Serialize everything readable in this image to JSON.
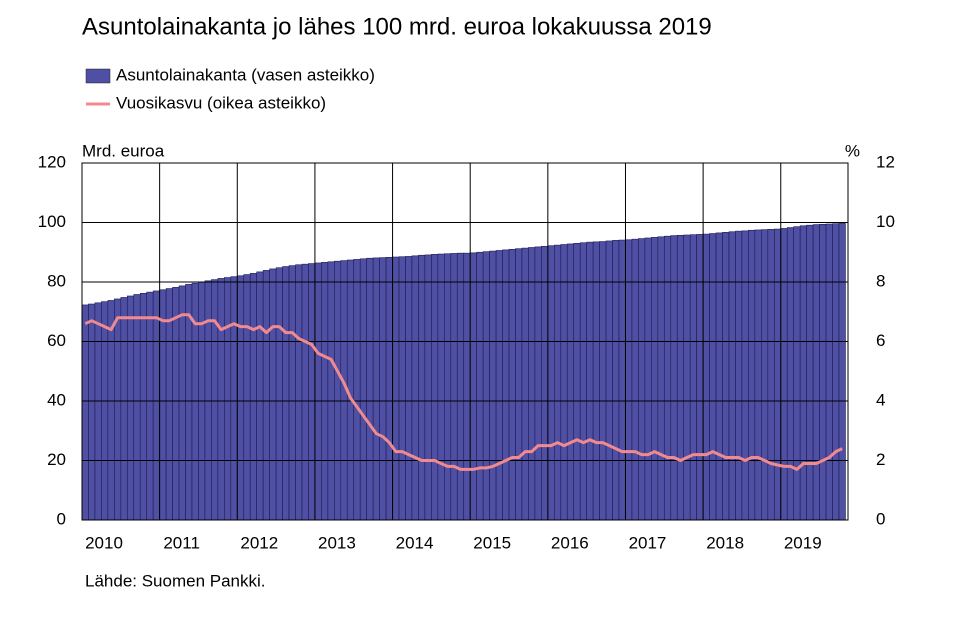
{
  "chart_data": {
    "type": "bar",
    "title": "Asuntolainakanta jo lähes 100 mrd. euroa lokakuussa 2019",
    "y_label": "Mrd. euroa",
    "y2_label": "%",
    "source": "Lähde: Suomen Pankki.",
    "categories": [
      "2010",
      null,
      null,
      null,
      null,
      null,
      null,
      null,
      null,
      null,
      null,
      null,
      "2011",
      null,
      null,
      null,
      null,
      null,
      null,
      null,
      null,
      null,
      null,
      null,
      "2012",
      null,
      null,
      null,
      null,
      null,
      null,
      null,
      null,
      null,
      null,
      null,
      "2013",
      null,
      null,
      null,
      null,
      null,
      null,
      null,
      null,
      null,
      null,
      null,
      "2014",
      null,
      null,
      null,
      null,
      null,
      null,
      null,
      null,
      null,
      null,
      null,
      "2015",
      null,
      null,
      null,
      null,
      null,
      null,
      null,
      null,
      null,
      null,
      null,
      "2016",
      null,
      null,
      null,
      null,
      null,
      null,
      null,
      null,
      null,
      null,
      null,
      "2017",
      null,
      null,
      null,
      null,
      null,
      null,
      null,
      null,
      null,
      null,
      null,
      "2018",
      null,
      null,
      null,
      null,
      null,
      null,
      null,
      null,
      null,
      null,
      null,
      "2019",
      null,
      null,
      null,
      null,
      null,
      null,
      null,
      null,
      null
    ],
    "series": [
      {
        "name": "Asuntolainakanta (vasen asteikko)",
        "type": "bar",
        "color": "#4f4fa3",
        "values": [
          72.3,
          72.6,
          73.0,
          73.4,
          73.8,
          74.3,
          74.8,
          75.3,
          75.8,
          76.2,
          76.6,
          77.0,
          77.4,
          77.8,
          78.2,
          78.7,
          79.2,
          79.6,
          80.0,
          80.4,
          80.8,
          81.2,
          81.5,
          81.8,
          82.1,
          82.5,
          82.9,
          83.4,
          83.9,
          84.4,
          84.8,
          85.2,
          85.5,
          85.8,
          86.0,
          86.2,
          86.4,
          86.6,
          86.8,
          87.0,
          87.2,
          87.4,
          87.6,
          87.8,
          88.0,
          88.1,
          88.2,
          88.3,
          88.4,
          88.5,
          88.6,
          88.8,
          89.0,
          89.1,
          89.3,
          89.4,
          89.5,
          89.6,
          89.7,
          89.7,
          89.8,
          90.0,
          90.2,
          90.4,
          90.6,
          90.8,
          91.0,
          91.2,
          91.4,
          91.6,
          91.8,
          92.0,
          92.2,
          92.4,
          92.6,
          92.8,
          93.0,
          93.2,
          93.4,
          93.5,
          93.6,
          93.8,
          94.0,
          94.1,
          94.2,
          94.4,
          94.6,
          94.8,
          95.0,
          95.2,
          95.4,
          95.6,
          95.7,
          95.8,
          95.9,
          96.0,
          96.1,
          96.3,
          96.5,
          96.7,
          96.9,
          97.1,
          97.2,
          97.4,
          97.5,
          97.6,
          97.7,
          97.8,
          98.0,
          98.3,
          98.6,
          98.9,
          99.1,
          99.3,
          99.4,
          99.5,
          99.6,
          99.7
        ]
      },
      {
        "name": "Vuosikasvu (oikea asteikko)",
        "type": "line",
        "axis": "y2",
        "color": "#f08a8e",
        "values": [
          6.6,
          6.7,
          6.6,
          6.5,
          6.4,
          6.8,
          6.8,
          6.8,
          6.8,
          6.8,
          6.8,
          6.8,
          6.7,
          6.7,
          6.8,
          6.9,
          6.9,
          6.6,
          6.6,
          6.7,
          6.7,
          6.4,
          6.5,
          6.6,
          6.5,
          6.5,
          6.4,
          6.5,
          6.3,
          6.5,
          6.5,
          6.3,
          6.3,
          6.1,
          6.0,
          5.9,
          5.6,
          5.5,
          5.4,
          5.0,
          4.6,
          4.1,
          3.8,
          3.5,
          3.2,
          2.9,
          2.8,
          2.6,
          2.3,
          2.3,
          2.2,
          2.1,
          2.0,
          2.0,
          2.0,
          1.9,
          1.8,
          1.8,
          1.7,
          1.7,
          1.7,
          1.75,
          1.75,
          1.8,
          1.9,
          2.0,
          2.1,
          2.1,
          2.3,
          2.3,
          2.5,
          2.5,
          2.5,
          2.6,
          2.5,
          2.6,
          2.7,
          2.6,
          2.7,
          2.6,
          2.6,
          2.5,
          2.4,
          2.3,
          2.3,
          2.3,
          2.2,
          2.2,
          2.3,
          2.2,
          2.1,
          2.1,
          2.0,
          2.1,
          2.2,
          2.2,
          2.2,
          2.3,
          2.2,
          2.1,
          2.1,
          2.1,
          2.0,
          2.1,
          2.1,
          2.0,
          1.9,
          1.85,
          1.8,
          1.8,
          1.7,
          1.9,
          1.9,
          1.9,
          2.0,
          2.1,
          2.3,
          2.4
        ]
      }
    ],
    "ylim": [
      0,
      120
    ],
    "yticks": [
      0,
      20,
      40,
      60,
      80,
      100,
      120
    ],
    "y2lim": [
      0,
      12
    ],
    "y2ticks": [
      0,
      2,
      4,
      6,
      8,
      10,
      12
    ],
    "grid": true
  }
}
